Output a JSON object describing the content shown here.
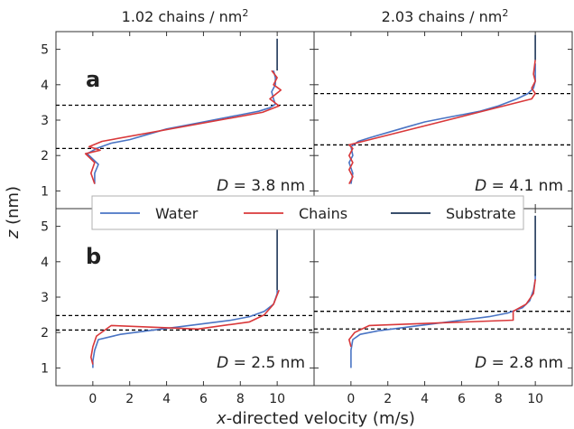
{
  "figure": {
    "ylabel_var": "z",
    "ylabel_unit": " (nm)",
    "xlabel_var": "x",
    "xlabel_rest": "-directed velocity (m/s)",
    "col_titles": [
      {
        "base": "1.02 chains / nm",
        "sup": "2"
      },
      {
        "base": "2.03 chains / nm",
        "sup": "2"
      }
    ],
    "row_labels": [
      "a",
      "b"
    ],
    "x_ticks": [
      "0",
      "2",
      "4",
      "6",
      "8",
      "10"
    ],
    "y_ticks": [
      "1",
      "2",
      "3",
      "4",
      "5"
    ],
    "legend": [
      "Water",
      "Chains",
      "Substrate"
    ],
    "colors": {
      "water": "#4a74c4",
      "chains": "#d9383a",
      "substrate": "#1d3557",
      "dashed": "#000000"
    }
  },
  "chart_data": [
    {
      "type": "line",
      "panel": "a",
      "column_title": "1.02 chains / nm2",
      "annotation": {
        "var": "D",
        "value": "= 3.8 nm"
      },
      "xlim": [
        -2.0,
        12.0
      ],
      "ylim": [
        0.5,
        5.5
      ],
      "dashed_lines_z": [
        3.42,
        2.2
      ],
      "series": [
        {
          "name": "Water",
          "points": [
            [
              0.1,
              1.2
            ],
            [
              0.1,
              1.5
            ],
            [
              0.3,
              1.75
            ],
            [
              -0.3,
              2.05
            ],
            [
              0.2,
              2.2
            ],
            [
              1.0,
              2.35
            ],
            [
              2.0,
              2.45
            ],
            [
              3.0,
              2.6
            ],
            [
              4.0,
              2.75
            ],
            [
              5.0,
              2.85
            ],
            [
              6.0,
              2.95
            ],
            [
              7.0,
              3.05
            ],
            [
              8.0,
              3.15
            ],
            [
              9.0,
              3.25
            ],
            [
              9.6,
              3.35
            ],
            [
              9.9,
              3.45
            ],
            [
              9.8,
              3.6
            ],
            [
              9.7,
              3.8
            ],
            [
              9.9,
              4.0
            ],
            [
              9.9,
              4.2
            ],
            [
              9.8,
              4.4
            ]
          ]
        },
        {
          "name": "Chains",
          "points": [
            [
              0.1,
              1.2
            ],
            [
              -0.1,
              1.5
            ],
            [
              0.1,
              1.8
            ],
            [
              -0.4,
              2.05
            ],
            [
              0.4,
              2.15
            ],
            [
              -0.2,
              2.25
            ],
            [
              0.5,
              2.4
            ],
            [
              9.2,
              3.22
            ],
            [
              10.1,
              3.4
            ],
            [
              9.6,
              3.6
            ],
            [
              10.2,
              3.85
            ],
            [
              9.8,
              4.0
            ],
            [
              10.0,
              4.2
            ],
            [
              9.7,
              4.4
            ]
          ]
        },
        {
          "name": "Substrate",
          "points": [
            [
              10.0,
              4.4
            ],
            [
              10.0,
              5.3
            ]
          ]
        }
      ]
    },
    {
      "type": "line",
      "panel": "a",
      "column_title": "2.03 chains / nm2",
      "annotation": {
        "var": "D",
        "value": "= 4.1 nm"
      },
      "xlim": [
        -2.0,
        12.0
      ],
      "ylim": [
        0.5,
        5.5
      ],
      "dashed_lines_z": [
        3.75,
        2.3
      ],
      "series": [
        {
          "name": "Water",
          "points": [
            [
              0.0,
              1.2
            ],
            [
              0.1,
              1.5
            ],
            [
              -0.1,
              1.8
            ],
            [
              0.1,
              2.0
            ],
            [
              0.0,
              2.25
            ],
            [
              0.4,
              2.4
            ],
            [
              1.0,
              2.5
            ],
            [
              2.0,
              2.65
            ],
            [
              3.0,
              2.8
            ],
            [
              4.0,
              2.95
            ],
            [
              5.0,
              3.05
            ],
            [
              6.0,
              3.15
            ],
            [
              7.0,
              3.25
            ],
            [
              8.0,
              3.4
            ],
            [
              9.0,
              3.6
            ],
            [
              9.6,
              3.75
            ],
            [
              9.9,
              3.9
            ],
            [
              10.0,
              4.1
            ],
            [
              10.0,
              4.3
            ],
            [
              10.0,
              4.6
            ]
          ]
        },
        {
          "name": "Chains",
          "points": [
            [
              -0.1,
              1.2
            ],
            [
              0.1,
              1.4
            ],
            [
              -0.1,
              1.6
            ],
            [
              0.1,
              1.8
            ],
            [
              -0.1,
              2.0
            ],
            [
              0.1,
              2.2
            ],
            [
              -0.1,
              2.3
            ],
            [
              9.8,
              3.6
            ],
            [
              10.0,
              3.75
            ],
            [
              9.8,
              3.9
            ],
            [
              10.0,
              4.1
            ],
            [
              9.9,
              4.3
            ],
            [
              10.0,
              4.7
            ]
          ]
        },
        {
          "name": "Substrate",
          "points": [
            [
              10.0,
              4.7
            ],
            [
              10.0,
              5.4
            ]
          ]
        }
      ]
    },
    {
      "type": "line",
      "panel": "b",
      "column_title": "1.02 chains / nm2",
      "annotation": {
        "var": "D",
        "value": "= 2.5 nm"
      },
      "xlim": [
        -2.0,
        12.0
      ],
      "ylim": [
        0.5,
        5.5
      ],
      "dashed_lines_z": [
        2.48,
        2.07
      ],
      "series": [
        {
          "name": "Water",
          "points": [
            [
              0.0,
              1.0
            ],
            [
              0.0,
              1.2
            ],
            [
              0.1,
              1.5
            ],
            [
              0.3,
              1.8
            ],
            [
              1.5,
              1.95
            ],
            [
              3.0,
              2.05
            ],
            [
              4.5,
              2.15
            ],
            [
              6.0,
              2.25
            ],
            [
              7.5,
              2.35
            ],
            [
              8.5,
              2.45
            ],
            [
              9.3,
              2.6
            ],
            [
              9.8,
              2.8
            ],
            [
              10.0,
              3.1
            ],
            [
              10.0,
              3.2
            ]
          ]
        },
        {
          "name": "Chains",
          "points": [
            [
              0.0,
              1.1
            ],
            [
              -0.1,
              1.3
            ],
            [
              0.0,
              1.6
            ],
            [
              0.2,
              1.9
            ],
            [
              1.0,
              2.2
            ],
            [
              5.7,
              2.1
            ],
            [
              8.5,
              2.3
            ],
            [
              9.3,
              2.5
            ],
            [
              9.8,
              2.8
            ],
            [
              10.1,
              3.2
            ]
          ]
        },
        {
          "name": "Substrate",
          "points": [
            [
              10.0,
              3.2
            ],
            [
              10.0,
              5.3
            ]
          ]
        }
      ]
    },
    {
      "type": "line",
      "panel": "b",
      "column_title": "2.03 chains / nm2",
      "annotation": {
        "var": "D",
        "value": "= 2.8 nm"
      },
      "xlim": [
        -2.0,
        12.0
      ],
      "ylim": [
        0.5,
        5.5
      ],
      "dashed_lines_z": [
        2.6,
        2.1
      ],
      "series": [
        {
          "name": "Water",
          "points": [
            [
              0.0,
              1.0
            ],
            [
              0.0,
              1.5
            ],
            [
              0.1,
              1.8
            ],
            [
              0.5,
              1.95
            ],
            [
              1.5,
              2.05
            ],
            [
              3.0,
              2.15
            ],
            [
              4.5,
              2.25
            ],
            [
              6.0,
              2.35
            ],
            [
              7.5,
              2.45
            ],
            [
              8.5,
              2.55
            ],
            [
              9.3,
              2.7
            ],
            [
              9.7,
              2.9
            ],
            [
              9.9,
              3.2
            ],
            [
              10.0,
              3.5
            ],
            [
              10.0,
              3.65
            ]
          ]
        },
        {
          "name": "Chains",
          "points": [
            [
              0.0,
              1.6
            ],
            [
              -0.1,
              1.8
            ],
            [
              0.2,
              2.0
            ],
            [
              1.0,
              2.2
            ],
            [
              8.8,
              2.35
            ],
            [
              8.8,
              2.6
            ],
            [
              9.5,
              2.8
            ],
            [
              9.9,
              3.1
            ],
            [
              10.0,
              3.5
            ]
          ]
        },
        {
          "name": "Substrate",
          "points": [
            [
              10.0,
              3.6
            ],
            [
              10.0,
              5.3
            ]
          ]
        }
      ]
    }
  ]
}
